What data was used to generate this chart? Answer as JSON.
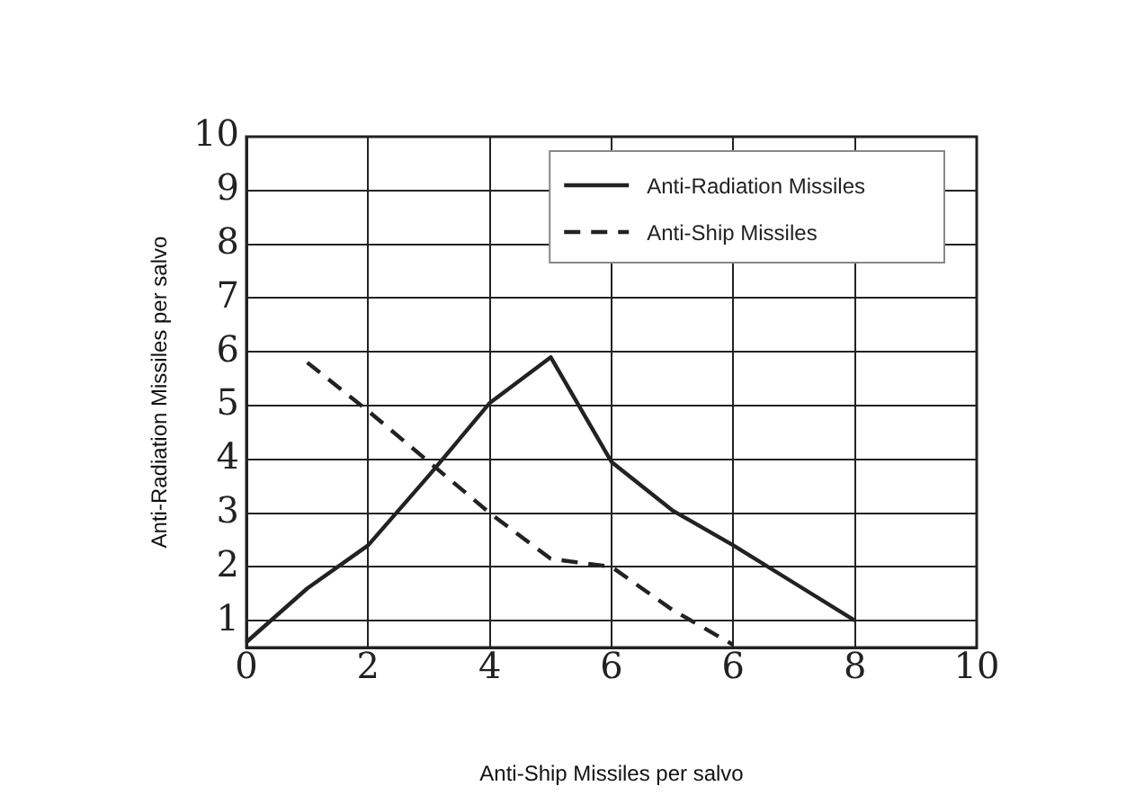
{
  "chart_data": {
    "type": "line",
    "xlabel": "Anti-Ship Missiles per salvo",
    "ylabel": "Anti-Radiation Missiles per salvo",
    "categories": [
      "0",
      null,
      "2",
      null,
      "4",
      null,
      "6",
      null,
      "6",
      null,
      "8",
      null,
      "10"
    ],
    "ylim": [
      0.5,
      10
    ],
    "yticks": [
      1,
      2,
      3,
      4,
      5,
      6,
      7,
      8,
      9,
      10
    ],
    "grid": true,
    "legend": "top right",
    "marker": "none",
    "series": [
      {
        "name": "Anti-Radiation Missiles",
        "color": "#222222",
        "line_style": "solid",
        "values": [
          0.6,
          1.6,
          2.4,
          3.7,
          5.05,
          5.9,
          3.95,
          3.05,
          2.4,
          1.7,
          1.0,
          null,
          null
        ]
      },
      {
        "name": "Anti-Ship Missiles",
        "color": "#222222",
        "line_style": "dashed",
        "values": [
          null,
          5.8,
          4.9,
          3.95,
          3.0,
          2.15,
          2.0,
          1.2,
          0.55,
          null,
          null,
          null,
          null
        ]
      }
    ]
  }
}
